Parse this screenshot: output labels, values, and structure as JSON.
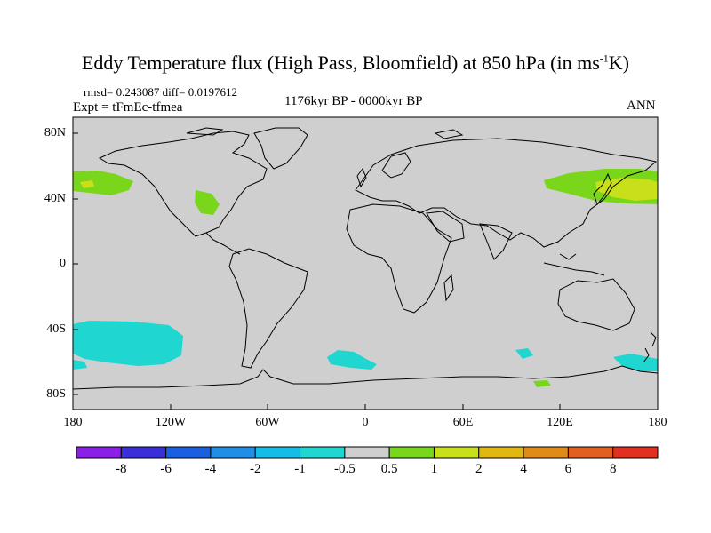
{
  "title_main": "Eddy Temperature flux (High Pass, Bloomfield) at 850 hPa (in ms",
  "title_sup": "-1",
  "title_tail": "K)",
  "stats": "rmsd= 0.243087 diff= 0.0197612",
  "expt": "Expt = tFmEc-tfmea",
  "period": "1176kyr BP - 0000kyr BP",
  "season": "ANN",
  "lat_labels": [
    "80N",
    "40N",
    "0",
    "40S",
    "80S"
  ],
  "lon_labels": [
    "180",
    "120W",
    "60W",
    "0",
    "60E",
    "120E",
    "180"
  ],
  "colorbar": {
    "labels": [
      "-8",
      "-6",
      "-4",
      "-2",
      "-1",
      "-0.5",
      "0.5",
      "1",
      "2",
      "4",
      "6",
      "8"
    ],
    "colors": [
      "#8a1fe6",
      "#3a2ed8",
      "#1a5fe0",
      "#1f8ee6",
      "#14bde6",
      "#1fd6d0",
      "#cfcfcf",
      "#7ad61a",
      "#c8e01a",
      "#e0b80f",
      "#e08a1a",
      "#e0601f",
      "#e0301f"
    ]
  },
  "map": {
    "background_color": "#cfcfcf",
    "anomaly_regions": [
      {
        "name": "north-pacific-east",
        "level": "1",
        "color": "#7ad61a"
      },
      {
        "name": "north-pacific-west",
        "level": "2",
        "color": "#c8e01a"
      },
      {
        "name": "north-atlantic",
        "level": "1",
        "color": "#7ad61a"
      },
      {
        "name": "south-pacific",
        "level": "-1",
        "color": "#1fd6d0"
      },
      {
        "name": "southern-ocean-atlantic",
        "level": "-1",
        "color": "#1fd6d0"
      },
      {
        "name": "southern-ocean-australia",
        "level": "-1",
        "color": "#1fd6d0"
      },
      {
        "name": "antarctic-coast",
        "level": "1",
        "color": "#7ad61a"
      }
    ]
  }
}
